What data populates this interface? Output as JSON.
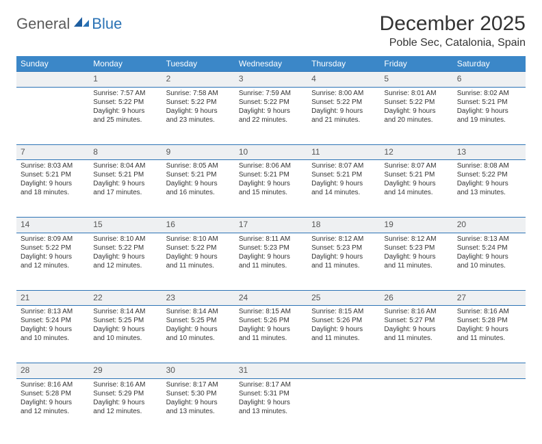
{
  "logo": {
    "general": "General",
    "blue": "Blue"
  },
  "title": "December 2025",
  "location": "Poble Sec, Catalonia, Spain",
  "colors": {
    "header_bg": "#3b87c8",
    "header_text": "#ffffff",
    "daynum_bg": "#eef0f2",
    "border": "#2a72b5",
    "logo_gray": "#5a5a5a",
    "logo_blue": "#2a72b5",
    "background": "#ffffff"
  },
  "weekdays": [
    "Sunday",
    "Monday",
    "Tuesday",
    "Wednesday",
    "Thursday",
    "Friday",
    "Saturday"
  ],
  "weeks": [
    [
      null,
      {
        "n": "1",
        "sr": "Sunrise: 7:57 AM",
        "ss": "Sunset: 5:22 PM",
        "dl": "Daylight: 9 hours and 25 minutes."
      },
      {
        "n": "2",
        "sr": "Sunrise: 7:58 AM",
        "ss": "Sunset: 5:22 PM",
        "dl": "Daylight: 9 hours and 23 minutes."
      },
      {
        "n": "3",
        "sr": "Sunrise: 7:59 AM",
        "ss": "Sunset: 5:22 PM",
        "dl": "Daylight: 9 hours and 22 minutes."
      },
      {
        "n": "4",
        "sr": "Sunrise: 8:00 AM",
        "ss": "Sunset: 5:22 PM",
        "dl": "Daylight: 9 hours and 21 minutes."
      },
      {
        "n": "5",
        "sr": "Sunrise: 8:01 AM",
        "ss": "Sunset: 5:22 PM",
        "dl": "Daylight: 9 hours and 20 minutes."
      },
      {
        "n": "6",
        "sr": "Sunrise: 8:02 AM",
        "ss": "Sunset: 5:21 PM",
        "dl": "Daylight: 9 hours and 19 minutes."
      }
    ],
    [
      {
        "n": "7",
        "sr": "Sunrise: 8:03 AM",
        "ss": "Sunset: 5:21 PM",
        "dl": "Daylight: 9 hours and 18 minutes."
      },
      {
        "n": "8",
        "sr": "Sunrise: 8:04 AM",
        "ss": "Sunset: 5:21 PM",
        "dl": "Daylight: 9 hours and 17 minutes."
      },
      {
        "n": "9",
        "sr": "Sunrise: 8:05 AM",
        "ss": "Sunset: 5:21 PM",
        "dl": "Daylight: 9 hours and 16 minutes."
      },
      {
        "n": "10",
        "sr": "Sunrise: 8:06 AM",
        "ss": "Sunset: 5:21 PM",
        "dl": "Daylight: 9 hours and 15 minutes."
      },
      {
        "n": "11",
        "sr": "Sunrise: 8:07 AM",
        "ss": "Sunset: 5:21 PM",
        "dl": "Daylight: 9 hours and 14 minutes."
      },
      {
        "n": "12",
        "sr": "Sunrise: 8:07 AM",
        "ss": "Sunset: 5:21 PM",
        "dl": "Daylight: 9 hours and 14 minutes."
      },
      {
        "n": "13",
        "sr": "Sunrise: 8:08 AM",
        "ss": "Sunset: 5:22 PM",
        "dl": "Daylight: 9 hours and 13 minutes."
      }
    ],
    [
      {
        "n": "14",
        "sr": "Sunrise: 8:09 AM",
        "ss": "Sunset: 5:22 PM",
        "dl": "Daylight: 9 hours and 12 minutes."
      },
      {
        "n": "15",
        "sr": "Sunrise: 8:10 AM",
        "ss": "Sunset: 5:22 PM",
        "dl": "Daylight: 9 hours and 12 minutes."
      },
      {
        "n": "16",
        "sr": "Sunrise: 8:10 AM",
        "ss": "Sunset: 5:22 PM",
        "dl": "Daylight: 9 hours and 11 minutes."
      },
      {
        "n": "17",
        "sr": "Sunrise: 8:11 AM",
        "ss": "Sunset: 5:23 PM",
        "dl": "Daylight: 9 hours and 11 minutes."
      },
      {
        "n": "18",
        "sr": "Sunrise: 8:12 AM",
        "ss": "Sunset: 5:23 PM",
        "dl": "Daylight: 9 hours and 11 minutes."
      },
      {
        "n": "19",
        "sr": "Sunrise: 8:12 AM",
        "ss": "Sunset: 5:23 PM",
        "dl": "Daylight: 9 hours and 11 minutes."
      },
      {
        "n": "20",
        "sr": "Sunrise: 8:13 AM",
        "ss": "Sunset: 5:24 PM",
        "dl": "Daylight: 9 hours and 10 minutes."
      }
    ],
    [
      {
        "n": "21",
        "sr": "Sunrise: 8:13 AM",
        "ss": "Sunset: 5:24 PM",
        "dl": "Daylight: 9 hours and 10 minutes."
      },
      {
        "n": "22",
        "sr": "Sunrise: 8:14 AM",
        "ss": "Sunset: 5:25 PM",
        "dl": "Daylight: 9 hours and 10 minutes."
      },
      {
        "n": "23",
        "sr": "Sunrise: 8:14 AM",
        "ss": "Sunset: 5:25 PM",
        "dl": "Daylight: 9 hours and 10 minutes."
      },
      {
        "n": "24",
        "sr": "Sunrise: 8:15 AM",
        "ss": "Sunset: 5:26 PM",
        "dl": "Daylight: 9 hours and 11 minutes."
      },
      {
        "n": "25",
        "sr": "Sunrise: 8:15 AM",
        "ss": "Sunset: 5:26 PM",
        "dl": "Daylight: 9 hours and 11 minutes."
      },
      {
        "n": "26",
        "sr": "Sunrise: 8:16 AM",
        "ss": "Sunset: 5:27 PM",
        "dl": "Daylight: 9 hours and 11 minutes."
      },
      {
        "n": "27",
        "sr": "Sunrise: 8:16 AM",
        "ss": "Sunset: 5:28 PM",
        "dl": "Daylight: 9 hours and 11 minutes."
      }
    ],
    [
      {
        "n": "28",
        "sr": "Sunrise: 8:16 AM",
        "ss": "Sunset: 5:28 PM",
        "dl": "Daylight: 9 hours and 12 minutes."
      },
      {
        "n": "29",
        "sr": "Sunrise: 8:16 AM",
        "ss": "Sunset: 5:29 PM",
        "dl": "Daylight: 9 hours and 12 minutes."
      },
      {
        "n": "30",
        "sr": "Sunrise: 8:17 AM",
        "ss": "Sunset: 5:30 PM",
        "dl": "Daylight: 9 hours and 13 minutes."
      },
      {
        "n": "31",
        "sr": "Sunrise: 8:17 AM",
        "ss": "Sunset: 5:31 PM",
        "dl": "Daylight: 9 hours and 13 minutes."
      },
      null,
      null,
      null
    ]
  ]
}
